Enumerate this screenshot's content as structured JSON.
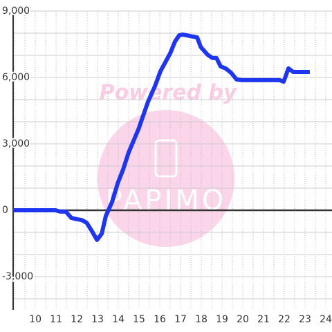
{
  "chart_data": {
    "type": "line",
    "watermark": {
      "text": "Powered by",
      "logo": "PAPIMO"
    },
    "x": [
      8.93,
      10.97,
      11.2,
      11.47,
      11.73,
      11.97,
      12.23,
      12.47,
      12.7,
      12.97,
      13.2,
      13.4,
      13.7,
      13.97,
      14.23,
      14.5,
      14.97,
      15.43,
      15.77,
      16.03,
      16.5,
      16.73,
      16.93,
      17.1,
      17.8,
      17.97,
      18.3,
      18.53,
      18.73,
      18.93,
      19.17,
      19.43,
      19.7,
      19.97,
      21.57,
      21.77,
      21.97,
      22.2,
      22.43,
      23.23
    ],
    "series": [
      {
        "color": "#1f36f0",
        "values": [
          0,
          0,
          -60,
          -60,
          -340,
          -400,
          -440,
          -560,
          -900,
          -1340,
          -1060,
          -250,
          380,
          1220,
          1840,
          2620,
          3660,
          4900,
          5620,
          6280,
          7090,
          7620,
          7900,
          7940,
          7810,
          7380,
          7030,
          6880,
          6880,
          6500,
          6410,
          6220,
          5910,
          5880,
          5880,
          5880,
          5810,
          6410,
          6250,
          6250
        ]
      }
    ],
    "xlim": [
      8.93,
      24.3
    ],
    "ylim": [
      -4500,
      9000
    ],
    "xticks": [
      10,
      11,
      12,
      13,
      14,
      15,
      16,
      17,
      18,
      19,
      20,
      21,
      22,
      23,
      24
    ],
    "yticks": [
      {
        "value": -3000,
        "label": "-3,000"
      },
      0,
      {
        "value": 3000,
        "label": "3,000"
      },
      {
        "value": 6000,
        "label": "6,000"
      },
      {
        "value": 9000,
        "label": "9,000"
      }
    ],
    "ygrid": [
      -4000,
      -3000,
      -2000,
      -1000,
      1000,
      2000,
      3000,
      4000,
      5000,
      6000,
      7000,
      8000,
      9000
    ],
    "xgrid": [
      9,
      9.5,
      10,
      10.5,
      11,
      11.5,
      12,
      12.5,
      13,
      13.5,
      14,
      14.5,
      15,
      15.5,
      16,
      16.5,
      17,
      17.5,
      18,
      18.5,
      19,
      19.5,
      20,
      20.5,
      21,
      21.5,
      22,
      22.5,
      23,
      23.5,
      24
    ]
  }
}
